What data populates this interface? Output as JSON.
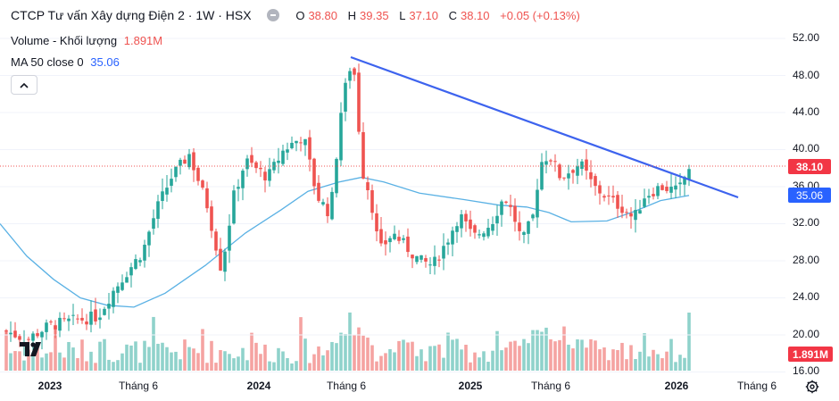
{
  "legend": {
    "title": "CTCP Tư vấn Xây dựng Điện 2 · 1W · HSX",
    "o_label": "O",
    "o_value": "38.80",
    "h_label": "H",
    "h_value": "39.35",
    "l_label": "L",
    "l_value": "37.10",
    "c_label": "C",
    "c_value": "38.10",
    "change": "+0.05 (+0.13%)",
    "volume_label": "Volume - Khối lượng",
    "volume_value": "1.891M",
    "ma_label": "MA 50 close 0",
    "ma_value": "35.06"
  },
  "colors": {
    "up": "#26a69a",
    "down": "#ef5350",
    "up_volume": "#8fd2cb",
    "down_volume": "#f5a3a1",
    "ma": "#5ab1e4",
    "trendline": "#3d63ee",
    "price_label_bg": "#f23645",
    "ma_label_bg": "#2962ff"
  },
  "icons": {
    "collapse": "chevron-up-icon",
    "logo": "tradingview-logo",
    "settings": "gear-icon"
  },
  "chart_data": {
    "type": "candlestick",
    "title": "CTCP Tư vấn Xây dựng Điện 2 · 1W · HSX",
    "interval": "1W",
    "y_axis": {
      "ticks": [
        "52.00",
        "48.00",
        "44.00",
        "40.00",
        "36.00",
        "32.00",
        "28.00",
        "24.00",
        "20.00",
        "16.00"
      ],
      "range": [
        16,
        52
      ],
      "position": "right"
    },
    "x_axis": {
      "ticks": [
        "2023",
        "Tháng 6",
        "2024",
        "Tháng 6",
        "2025",
        "Tháng 6",
        "2026",
        "Tháng 6"
      ]
    },
    "current_price": 38.1,
    "ma50_current": 35.06,
    "volume_current": "1.891M",
    "price_key_points": [
      {
        "label": "2023",
        "close": 21.0
      },
      {
        "label": "Tháng 6 2023",
        "close": 27.0
      },
      {
        "label": "2023 peak",
        "close": 39.5
      },
      {
        "label": "2023 low",
        "close": 26.0
      },
      {
        "label": "2024",
        "close": 37.0
      },
      {
        "label": "2024 peak",
        "high": 50.0
      },
      {
        "label": "Tháng 6 2024",
        "close": 37.5
      },
      {
        "label": "2024 low",
        "close": 26.0
      },
      {
        "label": "2025",
        "close": 31.0
      },
      {
        "label": "Tháng 6 2025",
        "high": 42.5
      },
      {
        "label": "2026",
        "close": 38.1
      }
    ],
    "trendline": {
      "start": {
        "label": "2024 peak",
        "price": 50.0
      },
      "end": {
        "label": "after 2026",
        "price": 34.6
      }
    },
    "ma50_key_points": [
      {
        "label": "2022",
        "value": 32.0
      },
      {
        "label": "2023 low",
        "value": 23.0
      },
      {
        "label": "2024",
        "value": 29.0
      },
      {
        "label": "Tháng 6 2024",
        "value": 37.0
      },
      {
        "label": "2025",
        "value": 35.0
      },
      {
        "label": "Tháng 6 2025",
        "value": 33.5
      },
      {
        "label": "2026",
        "value": 35.06
      }
    ]
  }
}
